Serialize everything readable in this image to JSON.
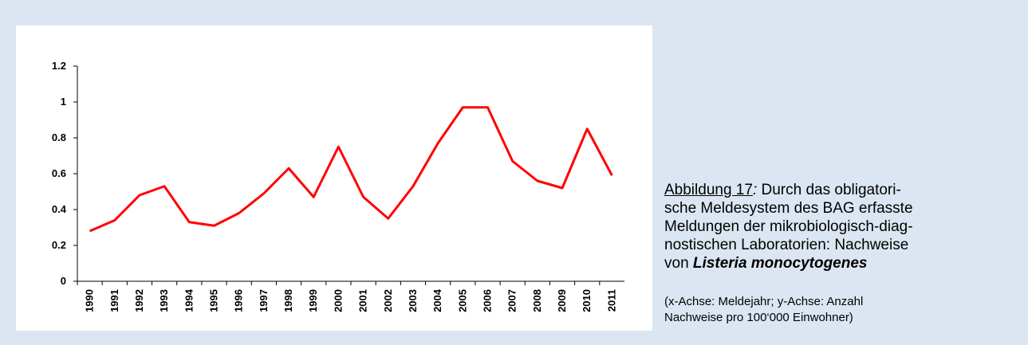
{
  "chart_data": {
    "type": "line",
    "categories": [
      "1990",
      "1991",
      "1992",
      "1993",
      "1994",
      "1995",
      "1996",
      "1997",
      "1998",
      "1999",
      "2000",
      "2001",
      "2002",
      "2003",
      "2004",
      "2005",
      "2006",
      "2007",
      "2008",
      "2009",
      "2010",
      "2011"
    ],
    "series": [
      {
        "name": "Listeria monocytogenes",
        "color": "#ff0000",
        "values": [
          0.28,
          0.34,
          0.48,
          0.53,
          0.33,
          0.31,
          0.38,
          0.49,
          0.63,
          0.47,
          0.75,
          0.47,
          0.35,
          0.53,
          0.77,
          0.97,
          0.97,
          0.67,
          0.56,
          0.52,
          0.85,
          0.59
        ]
      }
    ],
    "ylim": [
      0,
      1.2
    ],
    "yticks": [
      0,
      0.2,
      0.4,
      0.6,
      0.8,
      1,
      1.2
    ],
    "grid": false,
    "legend": false
  },
  "caption": {
    "label": "Abbildung 17",
    "sep": ":",
    "lines": [
      "Durch das obligatori-",
      "sche Meldesystem des BAG erfasste",
      "Meldungen der mikrobiologisch-diag-",
      "nostischen Laboratorien: Nachweise",
      "von"
    ],
    "species": "Listeria monocytogenes",
    "note": [
      "(x-Achse: Meldejahr; y-Achse: Anzahl",
      "Nachweise pro 100‘000 Einwohner)"
    ]
  }
}
